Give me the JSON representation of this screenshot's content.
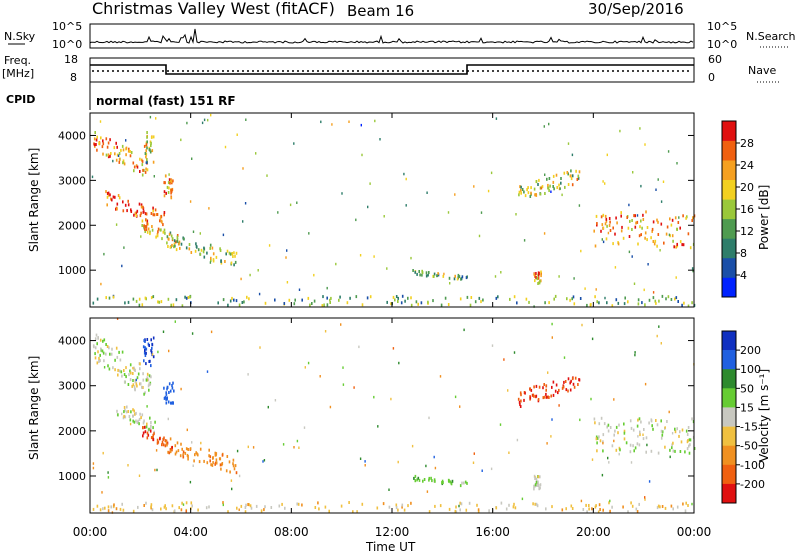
{
  "header": {
    "title": "Christmas Valley West (fitACF)",
    "beam": "Beam 16",
    "date": "30/Sep/2016"
  },
  "panels": {
    "noise": {
      "left_label": "N.Sky",
      "right_label": "N.Search",
      "left_ticks": [
        "10^5",
        "10^0"
      ],
      "right_ticks": [
        "10^5",
        "10^0"
      ]
    },
    "freq": {
      "left_label_1": "Freq.",
      "left_label_2": "[MHz]",
      "left_ticks": [
        "18",
        "8"
      ],
      "right_label": "Nave",
      "right_ticks": [
        "60",
        "0"
      ]
    },
    "cpid": {
      "label": "CPID",
      "text": "normal (fast) 151 RF"
    }
  },
  "x_axis": {
    "label": "Time UT",
    "ticks": [
      "00:00",
      "04:00",
      "08:00",
      "12:00",
      "16:00",
      "20:00",
      "00:00"
    ]
  },
  "power_panel": {
    "ylabel": "Slant Range [km]",
    "yticks": [
      "1000",
      "2000",
      "3000",
      "4000"
    ],
    "colorbar_label": "Power [dB]",
    "colorbar_ticks": [
      "4",
      "8",
      "12",
      "16",
      "20",
      "24",
      "28"
    ]
  },
  "velocity_panel": {
    "ylabel": "Slant Range [km]",
    "yticks": [
      "1000",
      "2000",
      "3000",
      "4000"
    ],
    "colorbar_label": "Velocity [m s⁻¹]",
    "colorbar_ticks": [
      "200",
      "100",
      "50",
      "15",
      "-15",
      "-50",
      "-100",
      "-200"
    ]
  },
  "colors": {
    "power_scale": [
      "#0022ff",
      "#1a4fa8",
      "#2e7d6a",
      "#4f9b50",
      "#9ac83a",
      "#f2d020",
      "#f5a020",
      "#f06010",
      "#e01010"
    ],
    "velocity_scale": [
      "#1030c0",
      "#2060e0",
      "#2e8a2e",
      "#66cc33",
      "#c8c8c0",
      "#f0c040",
      "#f09020",
      "#f06010",
      "#e01010"
    ]
  },
  "chart_data": [
    {
      "type": "heatmap",
      "name": "Power",
      "x_range_hours": [
        0,
        24
      ],
      "ylim_km": [
        180,
        4500
      ],
      "zlim": [
        0,
        30
      ],
      "clusters": [
        {
          "t": [
            0.1,
            2.3
          ],
          "r": [
            3000,
            3900
          ],
          "slope": -1,
          "level": 0.75
        },
        {
          "t": [
            0.6,
            3.0
          ],
          "r": [
            1900,
            2600
          ],
          "slope": -1,
          "level": 0.85
        },
        {
          "t": [
            2.0,
            3.5
          ],
          "r": [
            1500,
            2000
          ],
          "slope": -1,
          "level": 0.6
        },
        {
          "t": [
            3.0,
            5.8
          ],
          "r": [
            1000,
            1700
          ],
          "slope": -1,
          "level": 0.5
        },
        {
          "t": [
            2.9,
            3.3
          ],
          "r": [
            2600,
            3100
          ],
          "slope": 0,
          "level": 0.7
        },
        {
          "t": [
            2.1,
            2.5
          ],
          "r": [
            3400,
            4100
          ],
          "slope": 0,
          "level": 0.55
        },
        {
          "t": [
            12.8,
            15.0
          ],
          "r": [
            750,
            950
          ],
          "slope": -1,
          "level": 0.45
        },
        {
          "t": [
            17.0,
            19.5
          ],
          "r": [
            2700,
            3400
          ],
          "slope": 1,
          "level": 0.55
        },
        {
          "t": [
            20.0,
            24.0
          ],
          "r": [
            1500,
            2300
          ],
          "slope": 0,
          "level": 0.75
        },
        {
          "t": [
            17.6,
            17.9
          ],
          "r": [
            700,
            1000
          ],
          "slope": 0,
          "level": 0.7
        },
        {
          "t": [
            0.0,
            24.0
          ],
          "r": [
            200,
            420
          ],
          "slope": 0,
          "level": 0.4
        }
      ]
    },
    {
      "type": "heatmap",
      "name": "Velocity",
      "x_range_hours": [
        0,
        24
      ],
      "ylim_km": [
        180,
        4500
      ],
      "zlim": [
        -250,
        250
      ],
      "clusters": [
        {
          "t": [
            0.0,
            2.4
          ],
          "r": [
            2600,
            3900
          ],
          "slope": -1,
          "v": 0
        },
        {
          "t": [
            1.0,
            2.6
          ],
          "r": [
            1900,
            2500
          ],
          "slope": -1,
          "v": 0
        },
        {
          "t": [
            2.0,
            3.3
          ],
          "r": [
            1500,
            2000
          ],
          "slope": -1,
          "v": -180
        },
        {
          "t": [
            3.0,
            5.8
          ],
          "r": [
            1000,
            1700
          ],
          "slope": -1,
          "v": -80
        },
        {
          "t": [
            2.9,
            3.3
          ],
          "r": [
            2600,
            3100
          ],
          "slope": 0,
          "v": 150
        },
        {
          "t": [
            2.1,
            2.5
          ],
          "r": [
            3400,
            4100
          ],
          "slope": 0,
          "v": 200
        },
        {
          "t": [
            12.8,
            15.0
          ],
          "r": [
            750,
            950
          ],
          "slope": -1,
          "v": 40
        },
        {
          "t": [
            17.0,
            19.5
          ],
          "r": [
            2700,
            3400
          ],
          "slope": 1,
          "v": -200
        },
        {
          "t": [
            20.0,
            24.0
          ],
          "r": [
            1500,
            2300
          ],
          "slope": 0,
          "v": 0
        },
        {
          "t": [
            17.6,
            17.9
          ],
          "r": [
            700,
            1000
          ],
          "slope": 0,
          "v": 0
        },
        {
          "t": [
            0.0,
            24.0
          ],
          "r": [
            200,
            420
          ],
          "slope": 0,
          "v": -30
        }
      ]
    }
  ]
}
